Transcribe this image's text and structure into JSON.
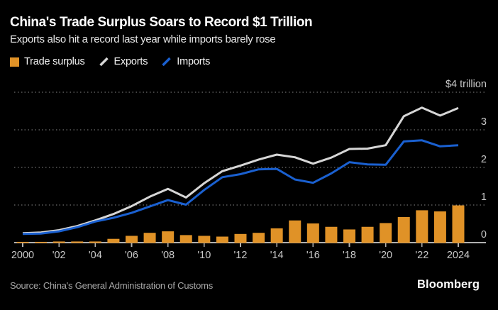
{
  "header": {
    "title": "China's Trade Surplus Soars to Record $1 Trillion",
    "subtitle": "Exports also hit a record last year while imports barely rose"
  },
  "footer": {
    "source": "Source: China's General Administration of Customs",
    "logo": "Bloomberg"
  },
  "chart_data": {
    "type": "combo-bar-line",
    "title": "China's Trade Surplus Soars to Record $1 Trillion",
    "unit": "USD trillion",
    "x": [
      2000,
      2001,
      2002,
      2003,
      2004,
      2005,
      2006,
      2007,
      2008,
      2009,
      2010,
      2011,
      2012,
      2013,
      2014,
      2015,
      2016,
      2017,
      2018,
      2019,
      2020,
      2021,
      2022,
      2023,
      2024
    ],
    "series": [
      {
        "name": "Trade surplus",
        "type": "bar",
        "color": "#E09227",
        "values": [
          0.02,
          0.02,
          0.03,
          0.03,
          0.03,
          0.1,
          0.18,
          0.26,
          0.3,
          0.2,
          0.18,
          0.16,
          0.23,
          0.26,
          0.38,
          0.59,
          0.51,
          0.42,
          0.35,
          0.42,
          0.52,
          0.68,
          0.86,
          0.83,
          0.99
        ]
      },
      {
        "name": "Exports",
        "type": "line",
        "color": "#D6D6D6",
        "values": [
          0.25,
          0.27,
          0.33,
          0.44,
          0.59,
          0.76,
          0.97,
          1.22,
          1.43,
          1.2,
          1.58,
          1.9,
          2.05,
          2.21,
          2.34,
          2.27,
          2.1,
          2.26,
          2.49,
          2.5,
          2.59,
          3.36,
          3.59,
          3.38,
          3.58
        ]
      },
      {
        "name": "Imports",
        "type": "line",
        "color": "#1A60D0",
        "values": [
          0.23,
          0.24,
          0.3,
          0.41,
          0.56,
          0.66,
          0.79,
          0.96,
          1.13,
          1.01,
          1.4,
          1.74,
          1.82,
          1.95,
          1.96,
          1.68,
          1.59,
          1.84,
          2.14,
          2.08,
          2.07,
          2.69,
          2.72,
          2.56,
          2.59
        ]
      }
    ],
    "x_ticks": [
      {
        "year": 2000,
        "label": "2000"
      },
      {
        "year": 2002,
        "label": "'02"
      },
      {
        "year": 2004,
        "label": "'04"
      },
      {
        "year": 2006,
        "label": "'06"
      },
      {
        "year": 2008,
        "label": "'08"
      },
      {
        "year": 2010,
        "label": "'10"
      },
      {
        "year": 2012,
        "label": "'12"
      },
      {
        "year": 2014,
        "label": "'14"
      },
      {
        "year": 2016,
        "label": "'16"
      },
      {
        "year": 2018,
        "label": "'18"
      },
      {
        "year": 2020,
        "label": "'20"
      },
      {
        "year": 2022,
        "label": "'22"
      },
      {
        "year": 2024,
        "label": "2024"
      }
    ],
    "y_ticks": [
      {
        "value": 4,
        "label": "$4 trillion"
      },
      {
        "value": 3,
        "label": "3"
      },
      {
        "value": 2,
        "label": "2"
      },
      {
        "value": 1,
        "label": "1"
      },
      {
        "value": 0,
        "label": "0"
      }
    ],
    "ylim": [
      0,
      4
    ],
    "grid": "horizontal-dotted",
    "legend_position": "top-left"
  }
}
